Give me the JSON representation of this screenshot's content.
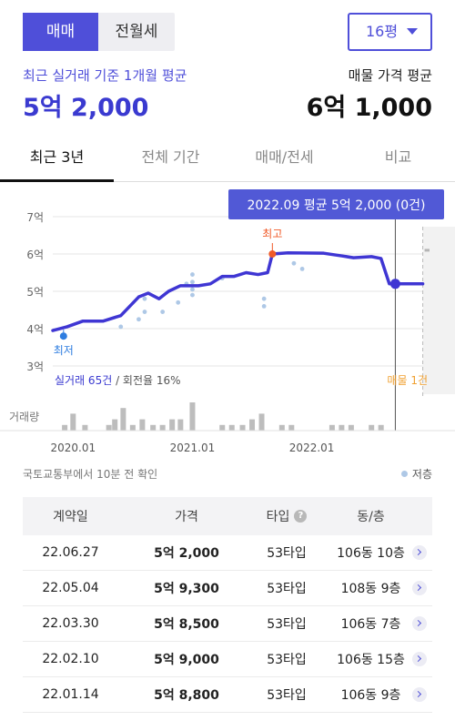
{
  "trade_toggle": {
    "options": [
      "매매",
      "전월세"
    ],
    "selected": "매매"
  },
  "size_select": {
    "value": "16평"
  },
  "summary": {
    "left_label": "최근 실거래 기준 1개월 평균",
    "left_value": "5억 2,000",
    "right_label": "매물 가격 평균",
    "right_value": "6억 1,000"
  },
  "tabs": [
    "최근 3년",
    "전체 기간",
    "매매/전세",
    "비교"
  ],
  "active_tab": "최근 3년",
  "chart_data": {
    "type": "line",
    "y_unit": "억",
    "yticks": [
      {
        "value": 7,
        "label": "7억"
      },
      {
        "value": 6,
        "label": "6억"
      },
      {
        "value": 5,
        "label": "5억"
      },
      {
        "value": 4,
        "label": "4억"
      },
      {
        "value": 3,
        "label": "3억"
      }
    ],
    "ylim": [
      3,
      7
    ],
    "xlim": [
      2019.83,
      2023.2
    ],
    "xticks": [
      {
        "value": 2020.0,
        "label": "2020.01"
      },
      {
        "value": 2021.0,
        "label": "2021.01"
      },
      {
        "value": 2022.0,
        "label": "2022.01"
      }
    ],
    "average_line": [
      [
        2019.83,
        3.95
      ],
      [
        2019.95,
        4.05
      ],
      [
        2020.08,
        4.2
      ],
      [
        2020.25,
        4.2
      ],
      [
        2020.4,
        4.35
      ],
      [
        2020.55,
        4.85
      ],
      [
        2020.63,
        4.95
      ],
      [
        2020.72,
        4.8
      ],
      [
        2020.8,
        5.0
      ],
      [
        2020.9,
        5.15
      ],
      [
        2021.05,
        5.15
      ],
      [
        2021.15,
        5.2
      ],
      [
        2021.25,
        5.4
      ],
      [
        2021.35,
        5.4
      ],
      [
        2021.45,
        5.5
      ],
      [
        2021.55,
        5.45
      ],
      [
        2021.63,
        5.5
      ],
      [
        2021.67,
        6.0
      ],
      [
        2021.8,
        6.03
      ],
      [
        2022.1,
        6.02
      ],
      [
        2022.25,
        5.95
      ],
      [
        2022.35,
        5.9
      ],
      [
        2022.5,
        5.93
      ],
      [
        2022.58,
        5.88
      ],
      [
        2022.65,
        5.2
      ],
      [
        2022.75,
        5.2
      ],
      [
        2023.2,
        5.2
      ]
    ],
    "transactions": [
      [
        2020.4,
        4.05
      ],
      [
        2020.55,
        4.25
      ],
      [
        2020.6,
        4.45
      ],
      [
        2020.6,
        4.8
      ],
      [
        2020.75,
        4.45
      ],
      [
        2020.88,
        4.7
      ],
      [
        2020.95,
        5.2
      ],
      [
        2021.0,
        4.9
      ],
      [
        2021.0,
        5.05
      ],
      [
        2021.0,
        5.25
      ],
      [
        2021.0,
        5.45
      ],
      [
        2021.25,
        5.35
      ],
      [
        2021.6,
        4.8
      ],
      [
        2021.6,
        4.6
      ],
      [
        2021.85,
        5.75
      ],
      [
        2021.92,
        5.6
      ]
    ],
    "volume": [
      {
        "x": 2019.93,
        "v": 1
      },
      {
        "x": 2020.0,
        "v": 3
      },
      {
        "x": 2020.1,
        "v": 1
      },
      {
        "x": 2020.3,
        "v": 1
      },
      {
        "x": 2020.35,
        "v": 2
      },
      {
        "x": 2020.42,
        "v": 4
      },
      {
        "x": 2020.5,
        "v": 1
      },
      {
        "x": 2020.58,
        "v": 2
      },
      {
        "x": 2020.67,
        "v": 1
      },
      {
        "x": 2020.75,
        "v": 1
      },
      {
        "x": 2020.83,
        "v": 2
      },
      {
        "x": 2020.9,
        "v": 2
      },
      {
        "x": 2021.0,
        "v": 5
      },
      {
        "x": 2021.25,
        "v": 1
      },
      {
        "x": 2021.33,
        "v": 1
      },
      {
        "x": 2021.42,
        "v": 1
      },
      {
        "x": 2021.5,
        "v": 2
      },
      {
        "x": 2021.58,
        "v": 3
      },
      {
        "x": 2021.75,
        "v": 1
      },
      {
        "x": 2021.83,
        "v": 1
      },
      {
        "x": 2022.17,
        "v": 1
      },
      {
        "x": 2022.25,
        "v": 1
      },
      {
        "x": 2022.33,
        "v": 1
      },
      {
        "x": 2022.5,
        "v": 1
      },
      {
        "x": 2022.58,
        "v": 1
      }
    ],
    "volume_label": "거래량",
    "high": {
      "label": "최고",
      "x": 2021.67,
      "y": 6.0
    },
    "low": {
      "label": "최저",
      "x": 2019.92,
      "y": 3.8
    },
    "cursor": {
      "x": 2022.7,
      "y": 5.2,
      "tooltip": "2022.09 평균 5억 2,000 (0건)"
    },
    "listing_divider_x": 2022.93,
    "listing_price": 6.1,
    "footer_left": "실거래 65건",
    "footer_left_rate": " / 회전율 16%",
    "footer_right": "매물 1건",
    "colors": {
      "line": "#3f36d3",
      "dots": "#aec8e6",
      "high": "#f05a28",
      "low": "#2e7de0",
      "volume": "#bdbdbd",
      "listing": "#f0a030"
    }
  },
  "chart_note": "국토교통부에서 10분 전 확인",
  "legend_label": "저층",
  "table": {
    "headers": [
      "계약일",
      "가격",
      "타입",
      "동/층"
    ],
    "help_icon": "?",
    "rows": [
      [
        "22.06.27",
        "5억 2,000",
        "53타입",
        "106동 10층"
      ],
      [
        "22.05.04",
        "5억 9,300",
        "53타입",
        "108동 9층"
      ],
      [
        "22.03.30",
        "5억 8,500",
        "53타입",
        "106동 7층"
      ],
      [
        "22.02.10",
        "5억 9,000",
        "53타입",
        "106동 15층"
      ],
      [
        "22.01.14",
        "5억 8,800",
        "53타입",
        "106동 9층"
      ]
    ]
  }
}
